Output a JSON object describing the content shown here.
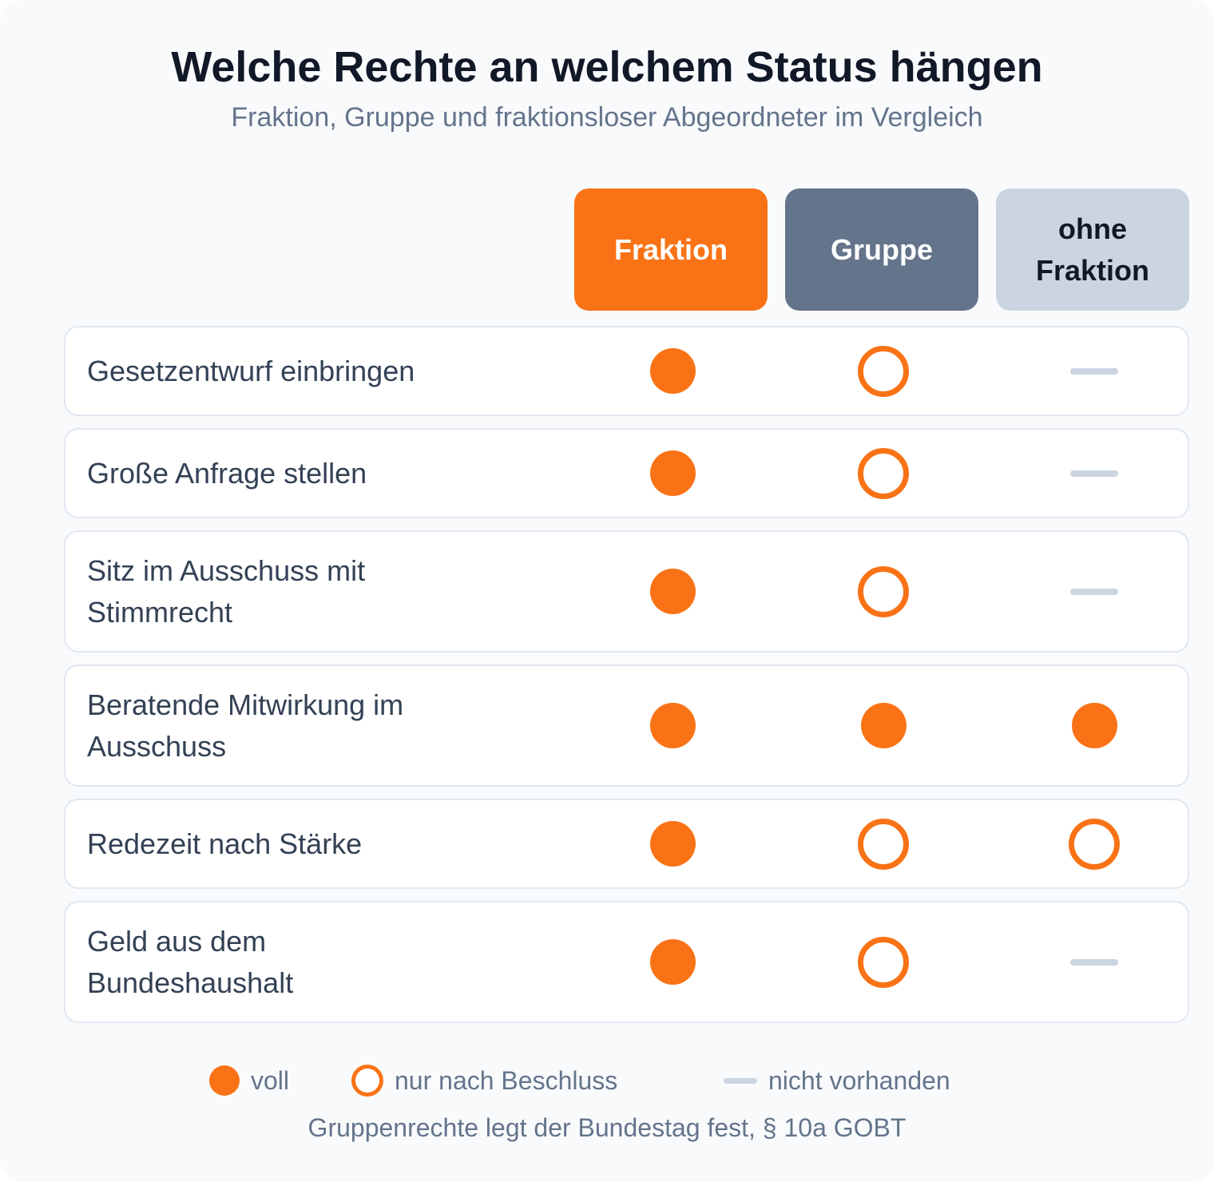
{
  "title": "Welche Rechte an welchem Status hängen",
  "subtitle": "Fraktion, Gruppe und fraktionsloser Abgeordneter im Vergleich",
  "columns": [
    "Fraktion",
    "Gruppe",
    "ohne Fraktion"
  ],
  "colors": {
    "accent": "#f97316",
    "group": "#64748b",
    "none": "#cbd5e1",
    "text": "#111827"
  },
  "rows": [
    {
      "label": "Gesetzentwurf einbringen",
      "status": [
        "voll",
        "nur nach Beschluss",
        "nicht vorhanden"
      ]
    },
    {
      "label": "Große Anfrage stellen",
      "status": [
        "voll",
        "nur nach Beschluss",
        "nicht vorhanden"
      ]
    },
    {
      "label": "Sitz im Ausschuss mit Stimmrecht",
      "status": [
        "voll",
        "nur nach Beschluss",
        "nicht vorhanden"
      ]
    },
    {
      "label": "Beratende Mitwirkung im Ausschuss",
      "status": [
        "voll",
        "voll",
        "voll"
      ]
    },
    {
      "label": "Redezeit nach Stärke",
      "status": [
        "voll",
        "nur nach Beschluss",
        "nur nach Beschluss"
      ]
    },
    {
      "label": "Geld aus dem Bundeshaushalt",
      "status": [
        "voll",
        "nur nach Beschluss",
        "nicht vorhanden"
      ]
    }
  ],
  "legend": {
    "full": "voll",
    "conditional": "nur nach Beschluss",
    "none": "nicht vorhanden"
  },
  "footnote": "Gruppenrechte legt der Bundestag fest, § 10a GOBT"
}
